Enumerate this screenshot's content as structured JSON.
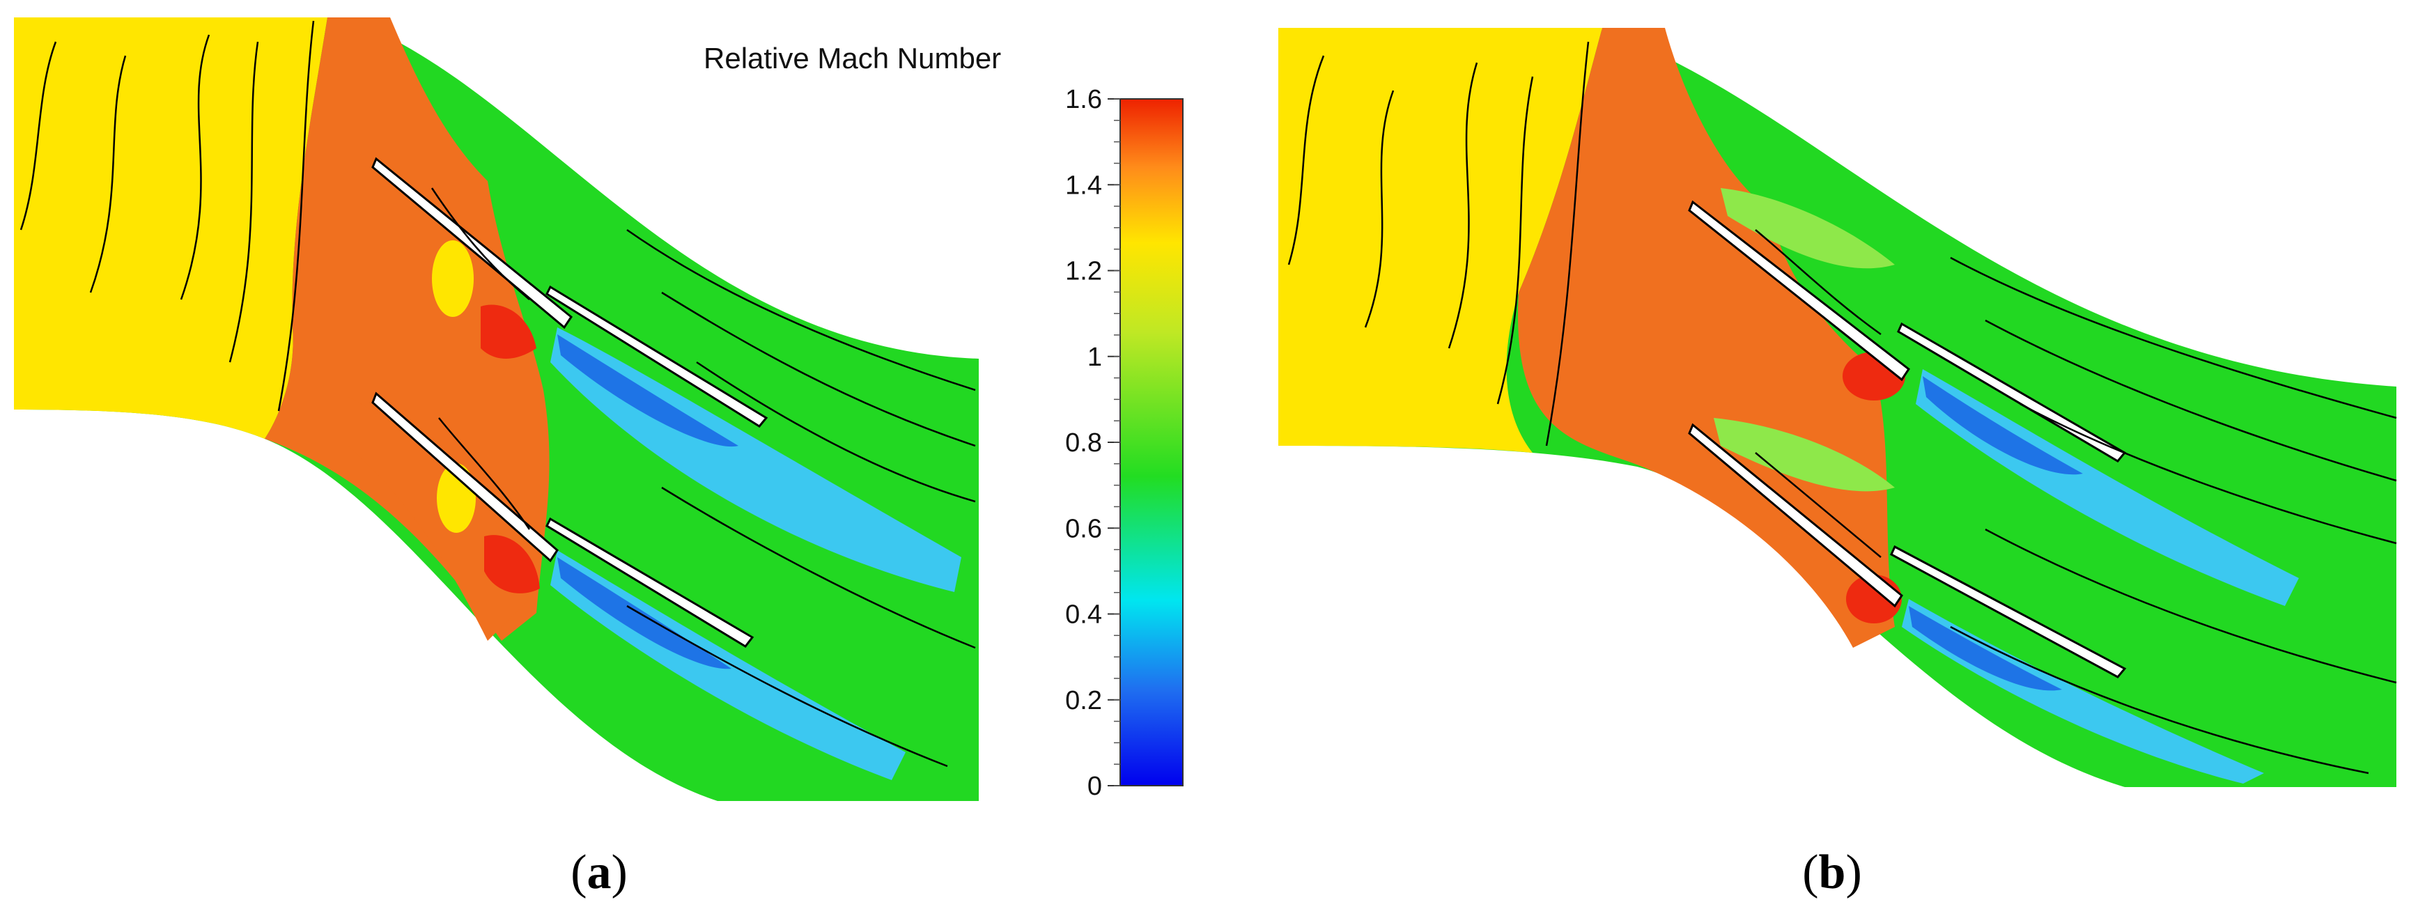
{
  "colorbar": {
    "title": "Relative Mach Number",
    "ticks": [
      "1.6",
      "1.4",
      "1.2",
      "1",
      "0.8",
      "0.6",
      "0.4",
      "0.2",
      "0"
    ],
    "min": 0,
    "max": 1.6,
    "colors": [
      "#0000ee",
      "#1f6ff0",
      "#00e6f0",
      "#22dd22",
      "#bfe824",
      "#ffe600",
      "#ff8c1a",
      "#ee2200"
    ]
  },
  "panels": [
    {
      "id": "a",
      "caption_open": "(",
      "caption_letter": "a",
      "caption_close": ")"
    },
    {
      "id": "b",
      "caption_open": "(",
      "caption_letter": "b",
      "caption_close": ")"
    }
  ],
  "palette": {
    "inlet": "#ffe600",
    "shock_band": "#f0701f",
    "peak": "#ee2a10",
    "passage": "#22d822",
    "light_green": "#8ee84a",
    "wake": "#3cc8f0",
    "wake_core": "#1e74e6",
    "blade": "#ffffff"
  }
}
